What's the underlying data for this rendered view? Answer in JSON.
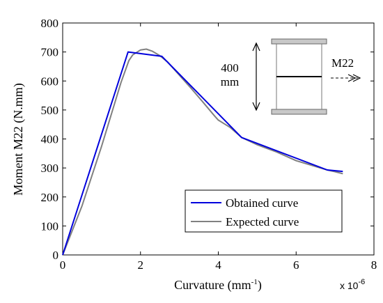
{
  "chart_data": {
    "type": "line",
    "title": "",
    "xlabel": "Curvature (mm",
    "xlabel_sup": "-1",
    "xlabel_close": ")",
    "x_multiplier": "x 10",
    "x_multiplier_exp": "-6",
    "ylabel": "Moment M22 (N.mm)",
    "xlim": [
      0,
      8
    ],
    "ylim": [
      0,
      800
    ],
    "x_ticks": [
      0,
      2,
      4,
      6,
      8
    ],
    "y_ticks": [
      0,
      100,
      200,
      300,
      400,
      500,
      600,
      700,
      800
    ],
    "grid": false,
    "legend_position": "bottom-right",
    "series": [
      {
        "name": "Obtained curve",
        "color": "#0000dd",
        "x": [
          0,
          1.68,
          2.55,
          4.6,
          6.8,
          7.2
        ],
        "y": [
          0,
          700,
          685,
          405,
          293,
          288
        ]
      },
      {
        "name": "Expected curve",
        "color": "#808080",
        "x": [
          0,
          0.5,
          1.0,
          1.5,
          1.7,
          1.8,
          2.0,
          2.15,
          2.3,
          2.5,
          2.7,
          3.0,
          3.3,
          3.6,
          3.9,
          4.0,
          4.3,
          4.6,
          5.0,
          5.5,
          6.0,
          6.5,
          6.8,
          7.0,
          7.2
        ],
        "y": [
          0,
          170,
          375,
          595,
          670,
          690,
          707,
          710,
          703,
          687,
          665,
          620,
          575,
          528,
          480,
          465,
          440,
          405,
          380,
          355,
          325,
          305,
          293,
          287,
          280
        ]
      }
    ],
    "inset": {
      "height_label_line1": "400",
      "height_label_line2": "mm",
      "moment_label": "M22"
    }
  }
}
